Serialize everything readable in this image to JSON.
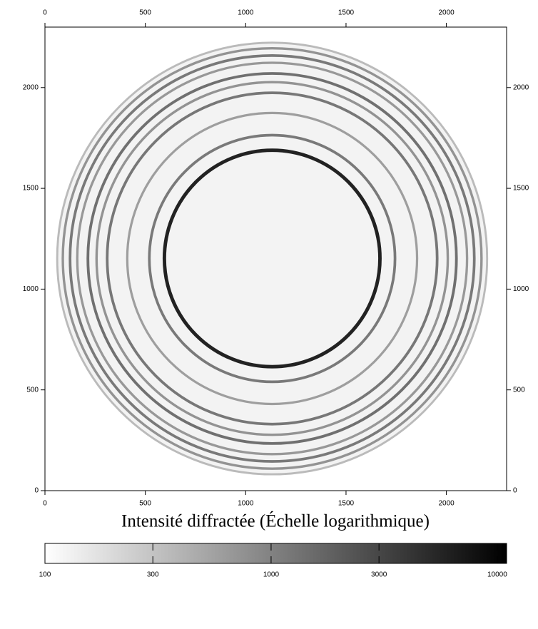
{
  "chart_data": {
    "type": "image",
    "xlim": [
      0,
      2300
    ],
    "ylim": [
      0,
      2300
    ],
    "xticks": [
      0,
      500,
      1000,
      1500,
      2000
    ],
    "yticks": [
      0,
      500,
      1000,
      1500,
      2000
    ],
    "rings": {
      "center": [
        1132,
        1152
      ],
      "radius": [
        1071,
        1043,
        1007,
        971,
        918,
        875,
        822,
        722,
        612,
        537
      ],
      "intensity": [
        400,
        900,
        1500,
        800,
        1800,
        900,
        1600,
        700,
        1500,
        9000
      ]
    },
    "colorbar": {
      "title": "Intensité diffractée (Échelle logarithmique)",
      "log": true,
      "clim": [
        100,
        11000
      ],
      "ticks": [
        100,
        300,
        1000,
        3000,
        10000
      ]
    }
  }
}
